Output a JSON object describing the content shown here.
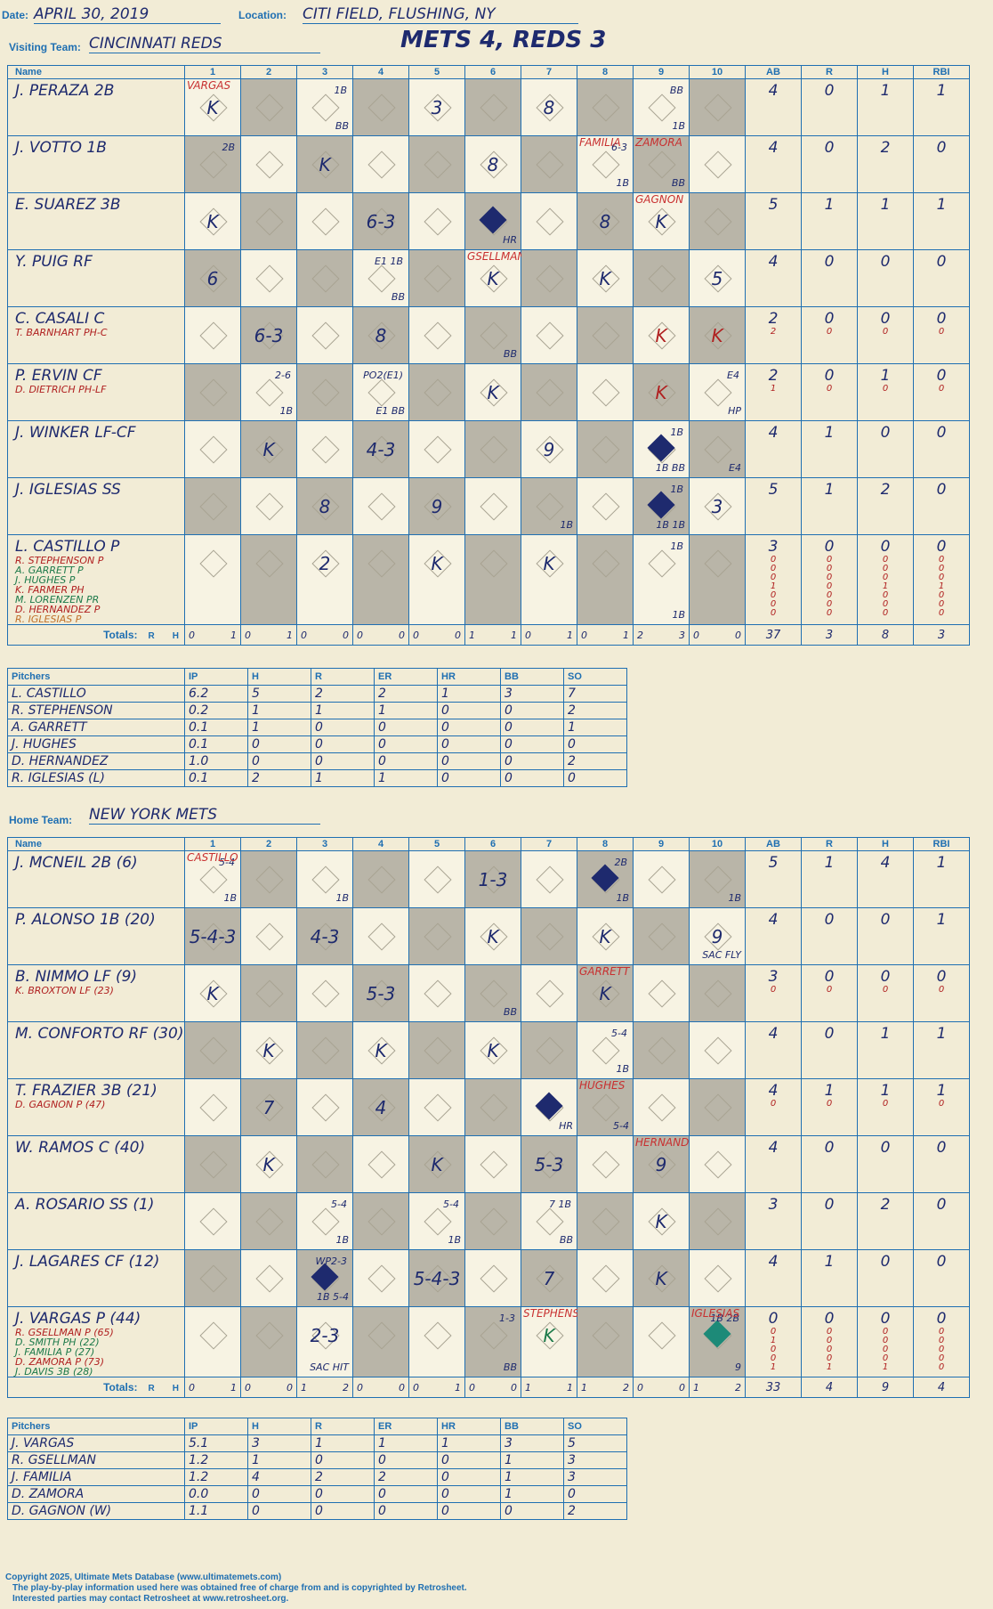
{
  "header": {
    "date_label": "Date:",
    "date": "APRIL 30, 2019",
    "location_label": "Location:",
    "location": "CITI FIELD, FLUSHING, NY",
    "visiting_label": "Visiting Team:",
    "visiting_team": "CINCINNATI REDS",
    "result": "METS 4, REDS 3",
    "home_label": "Home Team:",
    "home_team": "NEW YORK METS",
    "watermark": "Ultimate Mets Database ultimatemets.com"
  },
  "columns": {
    "name": "Name",
    "innings": [
      "1",
      "2",
      "3",
      "4",
      "5",
      "6",
      "7",
      "8",
      "9",
      "10"
    ],
    "stats": [
      "AB",
      "R",
      "H",
      "RBI"
    ],
    "totals_label": "Totals:",
    "r_label": "R",
    "h_label": "H"
  },
  "visitors": {
    "rows": [
      {
        "name": "J. PERAZA 2B",
        "subs": [],
        "stats": [
          "4",
          "0",
          "1",
          "1"
        ],
        "substats": []
      },
      {
        "name": "J. VOTTO 1B",
        "subs": [],
        "stats": [
          "4",
          "0",
          "2",
          "0"
        ],
        "substats": []
      },
      {
        "name": "E. SUAREZ 3B",
        "subs": [],
        "stats": [
          "5",
          "1",
          "1",
          "1"
        ],
        "substats": []
      },
      {
        "name": "Y. PUIG RF",
        "subs": [],
        "stats": [
          "4",
          "0",
          "0",
          "0"
        ],
        "substats": []
      },
      {
        "name": "C. CASALI C",
        "subs": [
          "T. BARNHART PH-C"
        ],
        "stats": [
          "2",
          "0",
          "0",
          "0"
        ],
        "substats": [
          [
            "2",
            "0",
            "0",
            "0"
          ]
        ]
      },
      {
        "name": "P. ERVIN CF",
        "subs": [
          "D. DIETRICH PH-LF"
        ],
        "stats": [
          "2",
          "0",
          "1",
          "0"
        ],
        "substats": [
          [
            "1",
            "0",
            "0",
            "0"
          ]
        ]
      },
      {
        "name": "J. WINKER LF-CF",
        "subs": [],
        "stats": [
          "4",
          "1",
          "0",
          "0"
        ],
        "substats": []
      },
      {
        "name": "J. IGLESIAS SS",
        "subs": [],
        "stats": [
          "5",
          "1",
          "2",
          "0"
        ],
        "substats": []
      },
      {
        "name": "L. CASTILLO P",
        "subs": [
          "R. STEPHENSON P",
          "A. GARRETT P",
          "J. HUGHES P",
          "K. FARMER PH",
          "M. LORENZEN PR",
          "D. HERNANDEZ P",
          "R. IGLESIAS P"
        ],
        "stats": [
          "3",
          "0",
          "0",
          "0"
        ],
        "substats": [
          [
            "0",
            "0",
            "0",
            "0"
          ],
          [
            "0",
            "0",
            "0",
            "0"
          ],
          [
            "0",
            "0",
            "0",
            "0"
          ],
          [
            "1",
            "0",
            "1",
            "1"
          ],
          [
            "0",
            "0",
            "0",
            "0"
          ],
          [
            "0",
            "0",
            "0",
            "0"
          ],
          [
            "0",
            "0",
            "0",
            "0"
          ]
        ]
      }
    ],
    "plays": [
      [
        {
          "t": "K",
          "n": "VARGAS"
        },
        {},
        {
          "t": "",
          "n1": "1B",
          "n2": "BB"
        },
        {},
        {
          "t": "3"
        },
        {},
        {
          "t": "8"
        },
        {},
        {
          "t": "",
          "n1": "BB",
          "n2": "1B"
        },
        {}
      ],
      [
        {
          "t": "",
          "n1": "2B"
        },
        {},
        {
          "t": "K"
        },
        {},
        {},
        {
          "t": "8"
        },
        {},
        {
          "t": "",
          "n1": "6-3",
          "n2": "1B",
          "n": "FAMILIA"
        },
        {
          "t": "",
          "n2": "BB",
          "n": "ZAMORA"
        },
        {}
      ],
      [
        {
          "t": "K"
        },
        {},
        {},
        {
          "t": "6-3"
        },
        {},
        {
          "t": "",
          "s": 1,
          "n2": "HR"
        },
        {},
        {
          "t": "8"
        },
        {
          "t": "K",
          "n": "GAGNON"
        },
        {}
      ],
      [
        {
          "t": "6"
        },
        {},
        {},
        {
          "t": "",
          "n1": "E1 1B",
          "n2": "BB"
        },
        {},
        {
          "t": "K",
          "n": "GSELLMAN"
        },
        {},
        {
          "t": "K"
        },
        {},
        {
          "t": "5"
        }
      ],
      [
        {},
        {
          "t": "6-3"
        },
        {},
        {
          "t": "8"
        },
        {},
        {
          "t": "",
          "n2": "BB"
        },
        {},
        {},
        {
          "t": "K",
          "r": 1
        },
        {
          "t": "K",
          "r": 1
        }
      ],
      [
        {},
        {
          "t": "",
          "n1": "2-6",
          "n2": "1B"
        },
        {},
        {
          "t": "",
          "n1": "PO2(E1)",
          "n2": "E1 BB"
        },
        {},
        {
          "t": "K"
        },
        {},
        {},
        {
          "t": "K",
          "r": 1
        },
        {
          "t": "",
          "n1": "E4",
          "n2": "HP"
        }
      ],
      [
        {},
        {
          "t": "K"
        },
        {},
        {
          "t": "4-3"
        },
        {},
        {},
        {
          "t": "9"
        },
        {},
        {
          "t": "",
          "s": 1,
          "n1": "1B",
          "n2": "1B BB"
        },
        {
          "t": "",
          "n2": "E4"
        }
      ],
      [
        {},
        {},
        {
          "t": "8"
        },
        {},
        {
          "t": "9"
        },
        {},
        {
          "t": "",
          "n2": "1B"
        },
        {},
        {
          "t": "",
          "s": 1,
          "n1": "1B",
          "n2": "1B 1B"
        },
        {
          "t": "3"
        }
      ],
      [
        {},
        {},
        {
          "t": "2"
        },
        {},
        {
          "t": "K"
        },
        {},
        {
          "t": "K"
        },
        {},
        {
          "t": "",
          "n1": "1B",
          "n2": "1B"
        },
        {}
      ]
    ],
    "totals": [
      [
        "0",
        "1"
      ],
      [
        "0",
        "1"
      ],
      [
        "0",
        "0"
      ],
      [
        "0",
        "0"
      ],
      [
        "0",
        "0"
      ],
      [
        "1",
        "1"
      ],
      [
        "0",
        "1"
      ],
      [
        "0",
        "1"
      ],
      [
        "2",
        "3"
      ],
      [
        "0",
        "0"
      ]
    ],
    "stat_totals": [
      "37",
      "3",
      "8",
      "3"
    ]
  },
  "visitor_pitchers": {
    "headers": [
      "Pitchers",
      "IP",
      "H",
      "R",
      "ER",
      "HR",
      "BB",
      "SO"
    ],
    "rows": [
      [
        "L. CASTILLO",
        "6.2",
        "5",
        "2",
        "2",
        "1",
        "3",
        "7"
      ],
      [
        "R. STEPHENSON",
        "0.2",
        "1",
        "1",
        "1",
        "0",
        "0",
        "2"
      ],
      [
        "A. GARRETT",
        "0.1",
        "1",
        "0",
        "0",
        "0",
        "0",
        "1"
      ],
      [
        "J. HUGHES",
        "0.1",
        "0",
        "0",
        "0",
        "0",
        "0",
        "0"
      ],
      [
        "D. HERNANDEZ",
        "1.0",
        "0",
        "0",
        "0",
        "0",
        "0",
        "2"
      ],
      [
        "R. IGLESIAS (L)",
        "0.1",
        "2",
        "1",
        "1",
        "0",
        "0",
        "0"
      ]
    ]
  },
  "home": {
    "rows": [
      {
        "name": "J. MCNEIL 2B (6)",
        "subs": [],
        "stats": [
          "5",
          "1",
          "4",
          "1"
        ],
        "substats": []
      },
      {
        "name": "P. ALONSO 1B (20)",
        "subs": [],
        "stats": [
          "4",
          "0",
          "0",
          "1"
        ],
        "substats": []
      },
      {
        "name": "B. NIMMO LF (9)",
        "subs": [
          "K. BROXTON LF (23)"
        ],
        "stats": [
          "3",
          "0",
          "0",
          "0"
        ],
        "substats": [
          [
            "0",
            "0",
            "0",
            "0"
          ]
        ]
      },
      {
        "name": "M. CONFORTO RF (30)",
        "subs": [],
        "stats": [
          "4",
          "0",
          "1",
          "1"
        ],
        "substats": []
      },
      {
        "name": "T. FRAZIER 3B (21)",
        "subs": [
          "D. GAGNON P (47)"
        ],
        "stats": [
          "4",
          "1",
          "1",
          "1"
        ],
        "substats": [
          [
            "0",
            "0",
            "0",
            "0"
          ]
        ]
      },
      {
        "name": "W. RAMOS C (40)",
        "subs": [],
        "stats": [
          "4",
          "0",
          "0",
          "0"
        ],
        "substats": []
      },
      {
        "name": "A. ROSARIO SS (1)",
        "subs": [],
        "stats": [
          "3",
          "0",
          "2",
          "0"
        ],
        "substats": []
      },
      {
        "name": "J. LAGARES CF (12)",
        "subs": [],
        "stats": [
          "4",
          "1",
          "0",
          "0"
        ],
        "substats": []
      },
      {
        "name": "J. VARGAS P (44)",
        "subs": [
          "R. GSELLMAN P (65)",
          "D. SMITH PH (22)",
          "J. FAMILIA P (27)",
          "D. ZAMORA P (73)",
          "J. DAVIS 3B (28)"
        ],
        "stats": [
          "0",
          "0",
          "0",
          "0"
        ],
        "substats": [
          [
            "0",
            "0",
            "0",
            "0"
          ],
          [
            "1",
            "0",
            "0",
            "0"
          ],
          [
            "0",
            "0",
            "0",
            "0"
          ],
          [
            "0",
            "0",
            "0",
            "0"
          ],
          [
            "1",
            "1",
            "1",
            "0"
          ]
        ]
      }
    ],
    "plays": [
      [
        {
          "t": "",
          "n1": "5-4",
          "n2": "1B",
          "n": "CASTILLO"
        },
        {},
        {
          "t": "",
          "n2": "1B"
        },
        {},
        {},
        {
          "t": "1-3"
        },
        {},
        {
          "t": "",
          "s": 1,
          "n1": "2B",
          "n2": "1B"
        },
        {},
        {
          "t": "",
          "n2": "1B"
        }
      ],
      [
        {
          "t": "5-4-3"
        },
        {},
        {
          "t": "4-3"
        },
        {},
        {},
        {
          "t": "K"
        },
        {},
        {
          "t": "K"
        },
        {},
        {
          "t": "9",
          "n2": "SAC FLY"
        }
      ],
      [
        {
          "t": "K"
        },
        {},
        {},
        {
          "t": "5-3"
        },
        {},
        {
          "t": "",
          "n2": "BB"
        },
        {},
        {
          "t": "K",
          "n": "GARRETT"
        },
        {},
        {}
      ],
      [
        {},
        {
          "t": "K"
        },
        {},
        {
          "t": "K"
        },
        {},
        {
          "t": "K"
        },
        {},
        {
          "t": "",
          "n1": "5-4",
          "n2": "1B"
        },
        {},
        {}
      ],
      [
        {},
        {
          "t": "7"
        },
        {},
        {
          "t": "4"
        },
        {},
        {},
        {
          "t": "",
          "s": 1,
          "n2": "HR"
        },
        {
          "t": "",
          "n2": "5-4",
          "n": "HUGHES"
        },
        {},
        {}
      ],
      [
        {},
        {
          "t": "K"
        },
        {},
        {},
        {
          "t": "K"
        },
        {},
        {
          "t": "5-3"
        },
        {},
        {
          "t": "9",
          "n": "HERNANDEZ"
        },
        {}
      ],
      [
        {},
        {},
        {
          "t": "",
          "n1": "5-4",
          "n2": "1B"
        },
        {},
        {
          "t": "",
          "n1": "5-4",
          "n2": "1B"
        },
        {},
        {
          "t": "",
          "n1": "7 1B",
          "n2": "BB"
        },
        {},
        {
          "t": "K"
        },
        {}
      ],
      [
        {},
        {},
        {
          "t": "",
          "s": 1,
          "n1": "WP2-3",
          "n2": "1B 5-4"
        },
        {},
        {
          "t": "5-4-3"
        },
        {},
        {
          "t": "7"
        },
        {},
        {
          "t": "K"
        },
        {}
      ],
      [
        {},
        {},
        {
          "t": "2-3",
          "n2": "SAC HIT"
        },
        {},
        {},
        {
          "t": "",
          "n1": "1-3",
          "n2": "BB"
        },
        {
          "t": "K",
          "g": 1,
          "n": "STEPHENSON"
        },
        {},
        {},
        {
          "t": "",
          "s": 2,
          "n1": "1B 2B",
          "n2": "9",
          "n": "IGLESIAS"
        }
      ]
    ],
    "totals": [
      [
        "0",
        "1"
      ],
      [
        "0",
        "0"
      ],
      [
        "1",
        "2"
      ],
      [
        "0",
        "0"
      ],
      [
        "0",
        "1"
      ],
      [
        "0",
        "0"
      ],
      [
        "1",
        "1"
      ],
      [
        "1",
        "2"
      ],
      [
        "0",
        "0"
      ],
      [
        "1",
        "2"
      ]
    ],
    "stat_totals": [
      "33",
      "4",
      "9",
      "4"
    ]
  },
  "home_pitchers": {
    "headers": [
      "Pitchers",
      "IP",
      "H",
      "R",
      "ER",
      "HR",
      "BB",
      "SO"
    ],
    "rows": [
      [
        "J. VARGAS",
        "5.1",
        "3",
        "1",
        "1",
        "1",
        "3",
        "5"
      ],
      [
        "R. GSELLMAN",
        "1.2",
        "1",
        "0",
        "0",
        "0",
        "1",
        "3"
      ],
      [
        "J. FAMILIA",
        "1.2",
        "4",
        "2",
        "2",
        "0",
        "1",
        "3"
      ],
      [
        "D. ZAMORA",
        "0.0",
        "0",
        "0",
        "0",
        "0",
        "1",
        "0"
      ],
      [
        "D. GAGNON (W)",
        "1.1",
        "0",
        "0",
        "0",
        "0",
        "0",
        "2"
      ]
    ]
  },
  "footer": {
    "line1": "Copyright 2025, Ultimate Mets Database (www.ultimatemets.com)",
    "line2": "The play-by-play information used here was obtained free of charge from and is copyrighted by Retrosheet.",
    "line3": "Interested parties may contact Retrosheet at www.retrosheet.org."
  }
}
